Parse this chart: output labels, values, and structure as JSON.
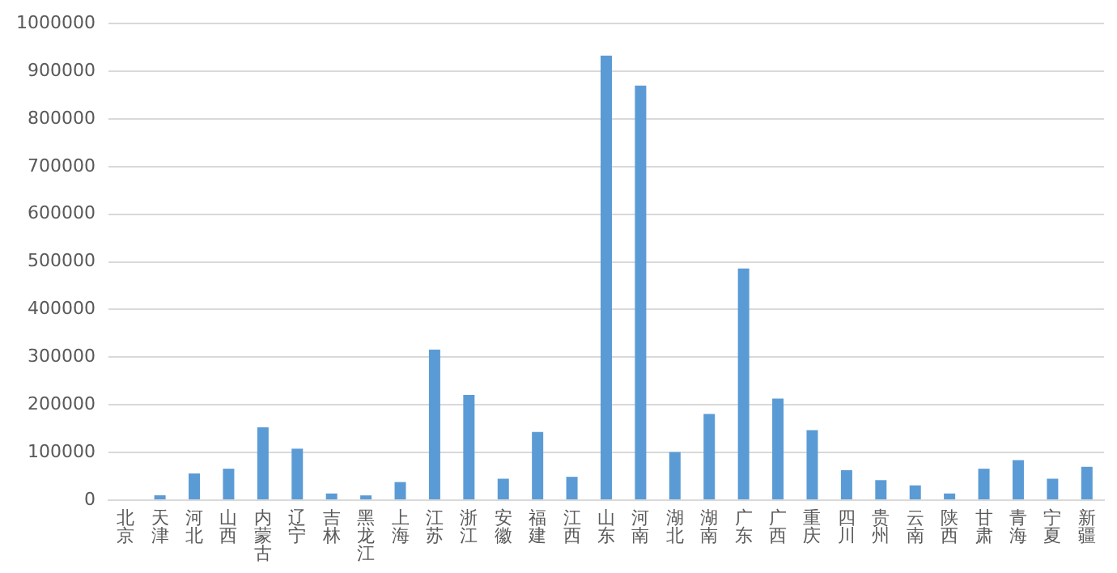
{
  "chart_data": {
    "type": "bar",
    "categories": [
      "北京",
      "天津",
      "河北",
      "山西",
      "内蒙古",
      "辽宁",
      "吉林",
      "黑龙江",
      "上海",
      "江苏",
      "浙江",
      "安徽",
      "福建",
      "江西",
      "山东",
      "河南",
      "湖北",
      "湖南",
      "广东",
      "广西",
      "重庆",
      "四川",
      "贵州",
      "云南",
      "陕西",
      "甘肃",
      "青海",
      "宁夏",
      "新疆"
    ],
    "values": [
      0,
      10000,
      56000,
      66000,
      153000,
      108000,
      14000,
      10000,
      38000,
      316000,
      221000,
      45000,
      143000,
      49000,
      933000,
      870000,
      101000,
      181000,
      486000,
      213000,
      147000,
      63000,
      42000,
      31000,
      14000,
      66000,
      84000,
      45000,
      70000
    ],
    "color": "#5b9bd5",
    "ylim": [
      0,
      1000000
    ],
    "yticks": [
      0,
      100000,
      200000,
      300000,
      400000,
      500000,
      600000,
      700000,
      800000,
      900000,
      1000000
    ],
    "grid": "y",
    "legend": false
  }
}
